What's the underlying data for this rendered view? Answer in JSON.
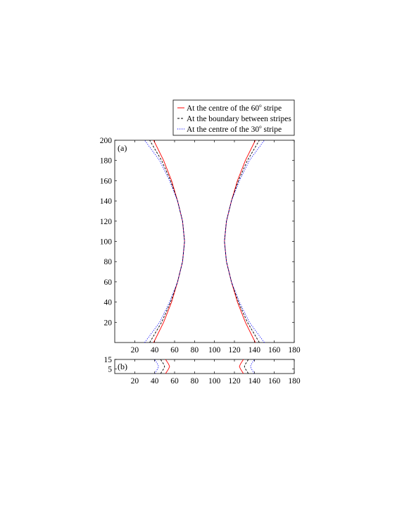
{
  "legend": [
    {
      "label_main": "At the centre of the 60",
      "deg": "o",
      "label_tail": " stripe",
      "color": "#ff0000",
      "dash": "solid"
    },
    {
      "label_main": "At the boundary between stripes",
      "deg": "",
      "label_tail": "",
      "color": "#000000",
      "dash": "dashed"
    },
    {
      "label_main": "At the centre of the 30",
      "deg": "o",
      "label_tail": " stripe",
      "color": "#0000ff",
      "dash": "dotted"
    }
  ],
  "chart_data": [
    {
      "panel_label": "(a)",
      "type": "line",
      "xlim": [
        0,
        180
      ],
      "ylim": [
        0,
        200
      ],
      "xticks": [
        "20",
        "40",
        "60",
        "80",
        "100",
        "120",
        "140",
        "160",
        "180"
      ],
      "yticks": [
        "20",
        "40",
        "60",
        "80",
        "100",
        "120",
        "140",
        "160",
        "180",
        "200"
      ],
      "series": [
        {
          "name": "At the centre of the 60° stripe",
          "color": "#ff0000",
          "left": [
            [
              39,
              0
            ],
            [
              49,
              20
            ],
            [
              57,
              40
            ],
            [
              63,
              60
            ],
            [
              68,
              80
            ],
            [
              70,
              100
            ],
            [
              68,
              120
            ],
            [
              63,
              140
            ],
            [
              57,
              160
            ],
            [
              49,
              180
            ],
            [
              39,
              200
            ]
          ],
          "right": [
            [
              141,
              0
            ],
            [
              131,
              20
            ],
            [
              123,
              40
            ],
            [
              117,
              60
            ],
            [
              112,
              80
            ],
            [
              110,
              100
            ],
            [
              112,
              120
            ],
            [
              117,
              140
            ],
            [
              123,
              160
            ],
            [
              131,
              180
            ],
            [
              141,
              200
            ]
          ]
        },
        {
          "name": "At the boundary between stripes",
          "color": "#000000",
          "left": [
            [
              35,
              0
            ],
            [
              47,
              20
            ],
            [
              56,
              40
            ],
            [
              63,
              60
            ],
            [
              68,
              80
            ],
            [
              70,
              100
            ],
            [
              68,
              120
            ],
            [
              63,
              140
            ],
            [
              56,
              160
            ],
            [
              47,
              180
            ],
            [
              35,
              200
            ]
          ],
          "right": [
            [
              145,
              0
            ],
            [
              133,
              20
            ],
            [
              124,
              40
            ],
            [
              117,
              60
            ],
            [
              112,
              80
            ],
            [
              110,
              100
            ],
            [
              112,
              120
            ],
            [
              117,
              140
            ],
            [
              124,
              160
            ],
            [
              133,
              180
            ],
            [
              145,
              200
            ]
          ]
        },
        {
          "name": "At the centre of the 30° stripe",
          "color": "#0000ff",
          "left": [
            [
              30,
              0
            ],
            [
              45,
              20
            ],
            [
              55,
              40
            ],
            [
              63,
              60
            ],
            [
              68,
              80
            ],
            [
              70,
              100
            ],
            [
              68,
              120
            ],
            [
              63,
              140
            ],
            [
              55,
              160
            ],
            [
              45,
              180
            ],
            [
              30,
              200
            ]
          ],
          "right": [
            [
              150,
              0
            ],
            [
              135,
              20
            ],
            [
              125,
              40
            ],
            [
              117,
              60
            ],
            [
              112,
              80
            ],
            [
              110,
              100
            ],
            [
              112,
              120
            ],
            [
              117,
              140
            ],
            [
              125,
              160
            ],
            [
              135,
              180
            ],
            [
              150,
              200
            ]
          ]
        }
      ]
    },
    {
      "panel_label": "(b)",
      "type": "line",
      "xlim": [
        0,
        180
      ],
      "ylim": [
        0,
        15
      ],
      "xticks": [
        "20",
        "40",
        "60",
        "80",
        "100",
        "120",
        "140",
        "160",
        "180"
      ],
      "yticks": [
        "5",
        "15"
      ],
      "series": [
        {
          "name": "At the centre of the 60° stripe",
          "color": "#ff0000",
          "left": [
            [
              51,
              0
            ],
            [
              54,
              5
            ],
            [
              55,
              7.5
            ],
            [
              54,
              10
            ],
            [
              51,
              15
            ]
          ],
          "right": [
            [
              129,
              0
            ],
            [
              126,
              5
            ],
            [
              125,
              7.5
            ],
            [
              126,
              10
            ],
            [
              129,
              15
            ]
          ]
        },
        {
          "name": "At the boundary between stripes",
          "color": "#000000",
          "left": [
            [
              46,
              0
            ],
            [
              49,
              5
            ],
            [
              50,
              7.5
            ],
            [
              49,
              10
            ],
            [
              46,
              15
            ]
          ],
          "right": [
            [
              134,
              0
            ],
            [
              131,
              5
            ],
            [
              130,
              7.5
            ],
            [
              131,
              10
            ],
            [
              134,
              15
            ]
          ]
        },
        {
          "name": "At the centre of the 30° stripe",
          "color": "#0000ff",
          "left": [
            [
              40,
              0
            ],
            [
              43,
              5
            ],
            [
              44,
              7.5
            ],
            [
              43,
              10
            ],
            [
              40,
              15
            ]
          ],
          "right": [
            [
              140,
              0
            ],
            [
              137,
              5
            ],
            [
              136,
              7.5
            ],
            [
              137,
              10
            ],
            [
              140,
              15
            ]
          ]
        }
      ]
    }
  ]
}
